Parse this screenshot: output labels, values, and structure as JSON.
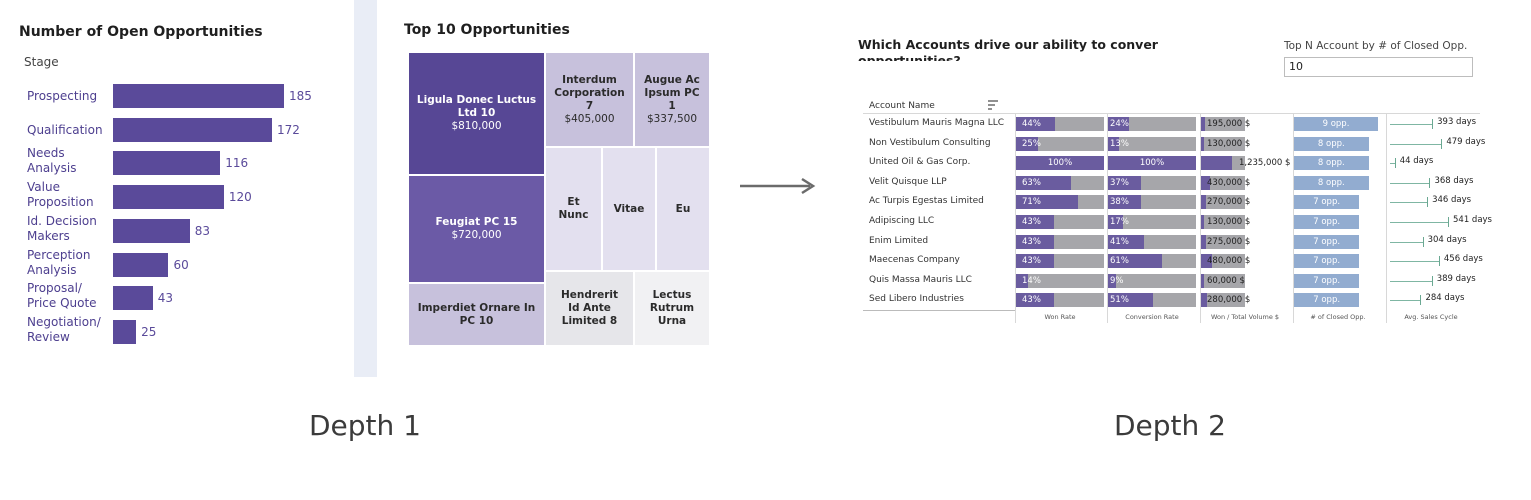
{
  "left_panel": {
    "bar_chart": {
      "title": "Number of Open Opportunities",
      "axis_header": "Stage"
    },
    "treemap": {
      "title": "Top 10 Opportunities"
    },
    "depth_label": "Depth 1"
  },
  "right_panel": {
    "title_line1": "Which Accounts drive our ability to convert",
    "title_line2": "opportunities?",
    "topn": {
      "label": "Top N Account by # of Closed Opp.",
      "value": "10"
    },
    "table": {
      "account_header": "Account Name",
      "column_footers": [
        "Won Rate",
        "Conversion Rate",
        "Won / Total Volume $",
        "# of Closed Opp.",
        "Avg. Sales Cycle"
      ]
    },
    "depth_label": "Depth 2"
  },
  "chart_data": [
    {
      "type": "bar",
      "title": "Number of Open Opportunities",
      "ylabel": "Stage",
      "categories": [
        "Prospecting",
        "Qualification",
        "Needs Analysis",
        "Value Proposition",
        "Id. Decision Makers",
        "Perception Analysis",
        "Proposal/ Price Quote",
        "Negotiation/ Review"
      ],
      "category_lines": [
        [
          "Prospecting"
        ],
        [
          "Qualification"
        ],
        [
          "Needs",
          "Analysis"
        ],
        [
          "Value",
          "Proposition"
        ],
        [
          "Id. Decision",
          "Makers"
        ],
        [
          "Perception",
          "Analysis"
        ],
        [
          "Proposal/",
          "Price Quote"
        ],
        [
          "Negotiation/",
          "Review"
        ]
      ],
      "values": [
        185,
        172,
        116,
        120,
        83,
        60,
        43,
        25
      ],
      "xlim": [
        0,
        185
      ],
      "orientation": "horizontal",
      "color": "#5a4a9a"
    },
    {
      "type": "treemap",
      "title": "Top 10 Opportunities",
      "items": [
        {
          "label": "Ligula Donec Luctus Ltd 10",
          "lines": [
            "Ligula Donec Luctus",
            "Ltd 10"
          ],
          "value": "$810,000"
        },
        {
          "label": "Interdum Corporation 7",
          "lines": [
            "Interdum",
            "Corporation",
            "7"
          ],
          "value": "$405,000"
        },
        {
          "label": "Augue Ac Ipsum PC 1",
          "lines": [
            "Augue Ac",
            "Ipsum PC",
            "1"
          ],
          "value": "$337,500"
        },
        {
          "label": "Feugiat PC 15",
          "lines": [
            "Feugiat PC 15"
          ],
          "value": "$720,000"
        },
        {
          "label": "Et Nunc",
          "lines": [
            "Et",
            "Nunc"
          ],
          "value": ""
        },
        {
          "label": "Vitae",
          "lines": [
            "Vitae"
          ],
          "value": ""
        },
        {
          "label": "Eu",
          "lines": [
            "Eu"
          ],
          "value": ""
        },
        {
          "label": "Imperdiet Ornare In PC 10",
          "lines": [
            "Imperdiet Ornare In",
            "PC 10"
          ],
          "value": ""
        },
        {
          "label": "Hendrerit Id Ante Limited 8",
          "lines": [
            "Hendrerit",
            "Id Ante",
            "Limited 8"
          ],
          "value": ""
        },
        {
          "label": "Lectus Rutrum Urna",
          "lines": [
            "Lectus",
            "Rutrum",
            "Urna"
          ],
          "value": ""
        }
      ],
      "colors": [
        "#574795",
        "#c7c1dc",
        "#c7c1dc",
        "#6b5aa6",
        "#e3e0ef",
        "#e3e0ef",
        "#e3e0ef",
        "#c7c1dc",
        "#e6e6ea",
        "#f1f1f3"
      ]
    },
    {
      "type": "table",
      "title": "Which Accounts drive our ability to convert opportunities?",
      "rows": [
        {
          "account": "Vestibulum Mauris Magna LLC",
          "won_rate": 44,
          "conversion_rate": 24,
          "won_volume": "195,000 $",
          "won_volume_frac": 0.04,
          "closed_opp": 9,
          "closed_opp_label": "9 opp.",
          "sales_cycle": 393,
          "sales_cycle_label": "393 days"
        },
        {
          "account": "Non Vestibulum Consulting",
          "won_rate": 25,
          "conversion_rate": 13,
          "won_volume": "130,000 $",
          "won_volume_frac": 0.02,
          "closed_opp": 8,
          "closed_opp_label": "8 opp.",
          "sales_cycle": 479,
          "sales_cycle_label": "479 days"
        },
        {
          "account": "United Oil & Gas Corp.",
          "won_rate": 100,
          "conversion_rate": 100,
          "won_volume": "1,235,000 $",
          "won_volume_frac": 0.35,
          "closed_opp": 8,
          "closed_opp_label": "8 opp.",
          "sales_cycle": 44,
          "sales_cycle_label": "44 days"
        },
        {
          "account": "Velit Quisque LLP",
          "won_rate": 63,
          "conversion_rate": 37,
          "won_volume": "430,000 $",
          "won_volume_frac": 0.1,
          "closed_opp": 8,
          "closed_opp_label": "8 opp.",
          "sales_cycle": 368,
          "sales_cycle_label": "368 days"
        },
        {
          "account": "Ac Turpis Egestas Limited",
          "won_rate": 71,
          "conversion_rate": 38,
          "won_volume": "270,000 $",
          "won_volume_frac": 0.06,
          "closed_opp": 7,
          "closed_opp_label": "7 opp.",
          "sales_cycle": 346,
          "sales_cycle_label": "346 days"
        },
        {
          "account": "Adipiscing LLC",
          "won_rate": 43,
          "conversion_rate": 17,
          "won_volume": "130,000 $",
          "won_volume_frac": 0.02,
          "closed_opp": 7,
          "closed_opp_label": "7 opp.",
          "sales_cycle": 541,
          "sales_cycle_label": "541 days"
        },
        {
          "account": "Enim Limited",
          "won_rate": 43,
          "conversion_rate": 41,
          "won_volume": "275,000 $",
          "won_volume_frac": 0.06,
          "closed_opp": 7,
          "closed_opp_label": "7 opp.",
          "sales_cycle": 304,
          "sales_cycle_label": "304 days"
        },
        {
          "account": "Maecenas Company",
          "won_rate": 43,
          "conversion_rate": 61,
          "won_volume": "480,000 $",
          "won_volume_frac": 0.12,
          "closed_opp": 7,
          "closed_opp_label": "7 opp.",
          "sales_cycle": 456,
          "sales_cycle_label": "456 days"
        },
        {
          "account": "Quis Massa Mauris LLC",
          "won_rate": 14,
          "conversion_rate": 9,
          "won_volume": "60,000 $",
          "won_volume_frac": 0.01,
          "closed_opp": 7,
          "closed_opp_label": "7 opp.",
          "sales_cycle": 389,
          "sales_cycle_label": "389 days"
        },
        {
          "account": "Sed Libero Industries",
          "won_rate": 43,
          "conversion_rate": 51,
          "won_volume": "280,000 $",
          "won_volume_frac": 0.07,
          "closed_opp": 7,
          "closed_opp_label": "7 opp.",
          "sales_cycle": 284,
          "sales_cycle_label": "284 days"
        }
      ],
      "opp_max": 9,
      "cycle_max": 541
    }
  ]
}
